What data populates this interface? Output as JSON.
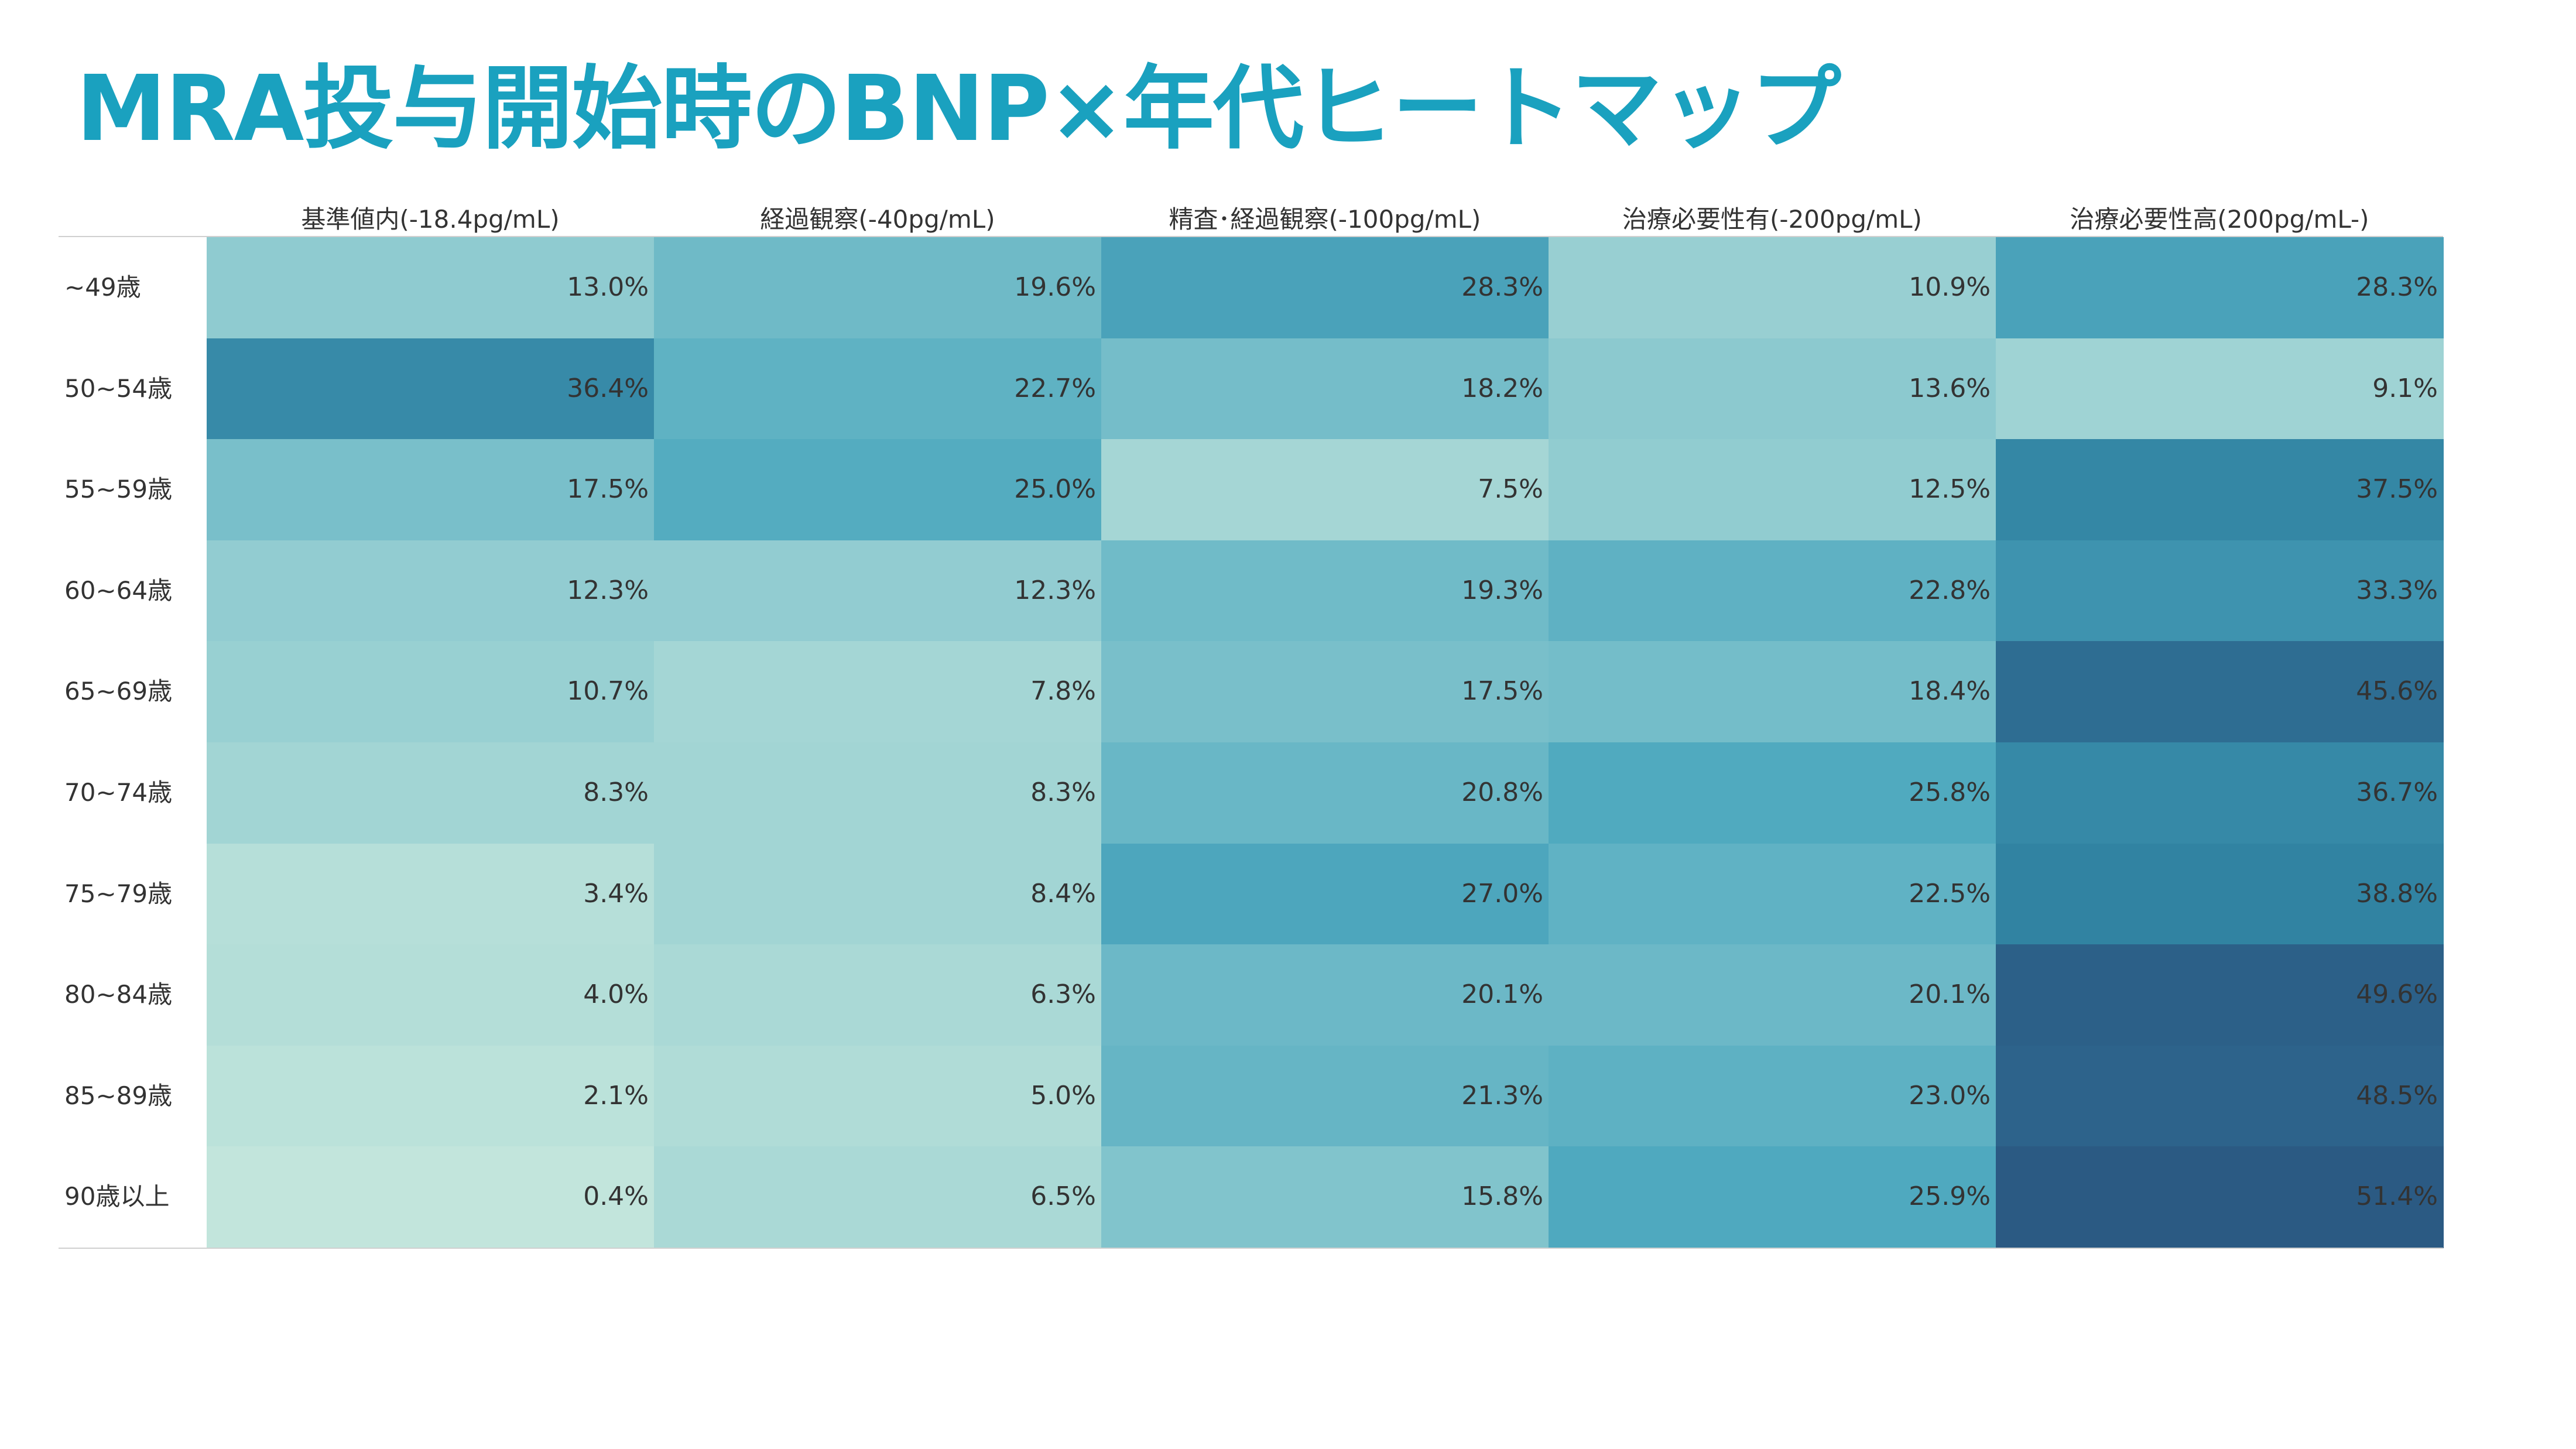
{
  "title": "MRA投与開始時のBNP×年代ヒートマップ",
  "chart_data": {
    "type": "heatmap",
    "title": "MRA投与開始時のBNP×年代ヒートマップ",
    "columns": [
      "基準値内(-18.4pg/mL)",
      "経過観察(-40pg/mL)",
      "精査･経過観察(-100pg/mL)",
      "治療必要性有(-200pg/mL)",
      "治療必要性高(200pg/mL-)"
    ],
    "rows": [
      "~49歳",
      "50~54歳",
      "55~59歳",
      "60~64歳",
      "65~69歳",
      "70~74歳",
      "75~79歳",
      "80~84歳",
      "85~89歳",
      "90歳以上"
    ],
    "values": [
      [
        13.0,
        19.6,
        28.3,
        10.9,
        28.3
      ],
      [
        36.4,
        22.7,
        18.2,
        13.6,
        9.1
      ],
      [
        17.5,
        25.0,
        7.5,
        12.5,
        37.5
      ],
      [
        12.3,
        12.3,
        19.3,
        22.8,
        33.3
      ],
      [
        10.7,
        7.8,
        17.5,
        18.4,
        45.6
      ],
      [
        8.3,
        8.3,
        20.8,
        25.8,
        36.7
      ],
      [
        3.4,
        8.4,
        27.0,
        22.5,
        38.8
      ],
      [
        4.0,
        6.3,
        20.1,
        20.1,
        49.6
      ],
      [
        2.1,
        5.0,
        21.3,
        23.0,
        48.5
      ],
      [
        0.4,
        6.5,
        15.8,
        25.9,
        51.4
      ]
    ],
    "labels": [
      [
        "13.0%",
        "19.6%",
        "28.3%",
        "10.9%",
        "28.3%"
      ],
      [
        "36.4%",
        "22.7%",
        "18.2%",
        "13.6%",
        "9.1%"
      ],
      [
        "17.5%",
        "25.0%",
        "7.5%",
        "12.5%",
        "37.5%"
      ],
      [
        "12.3%",
        "12.3%",
        "19.3%",
        "22.8%",
        "33.3%"
      ],
      [
        "10.7%",
        "7.8%",
        "17.5%",
        "18.4%",
        "45.6%"
      ],
      [
        "8.3%",
        "8.3%",
        "20.8%",
        "25.8%",
        "36.7%"
      ],
      [
        "3.4%",
        "8.4%",
        "27.0%",
        "22.5%",
        "38.8%"
      ],
      [
        "4.0%",
        "6.3%",
        "20.1%",
        "20.1%",
        "49.6%"
      ],
      [
        "2.1%",
        "5.0%",
        "21.3%",
        "23.0%",
        "48.5%"
      ],
      [
        "0.4%",
        "6.5%",
        "15.8%",
        "25.9%",
        "51.4%"
      ]
    ],
    "value_range": [
      0,
      52
    ],
    "color_scale": [
      "#c4e6dc",
      "#8fcbd0",
      "#4fa9bf",
      "#3182a2",
      "#2b5882"
    ],
    "legend": false,
    "grid": false
  },
  "colors": {
    "title": "#1aa1bf",
    "text": "#333333"
  }
}
